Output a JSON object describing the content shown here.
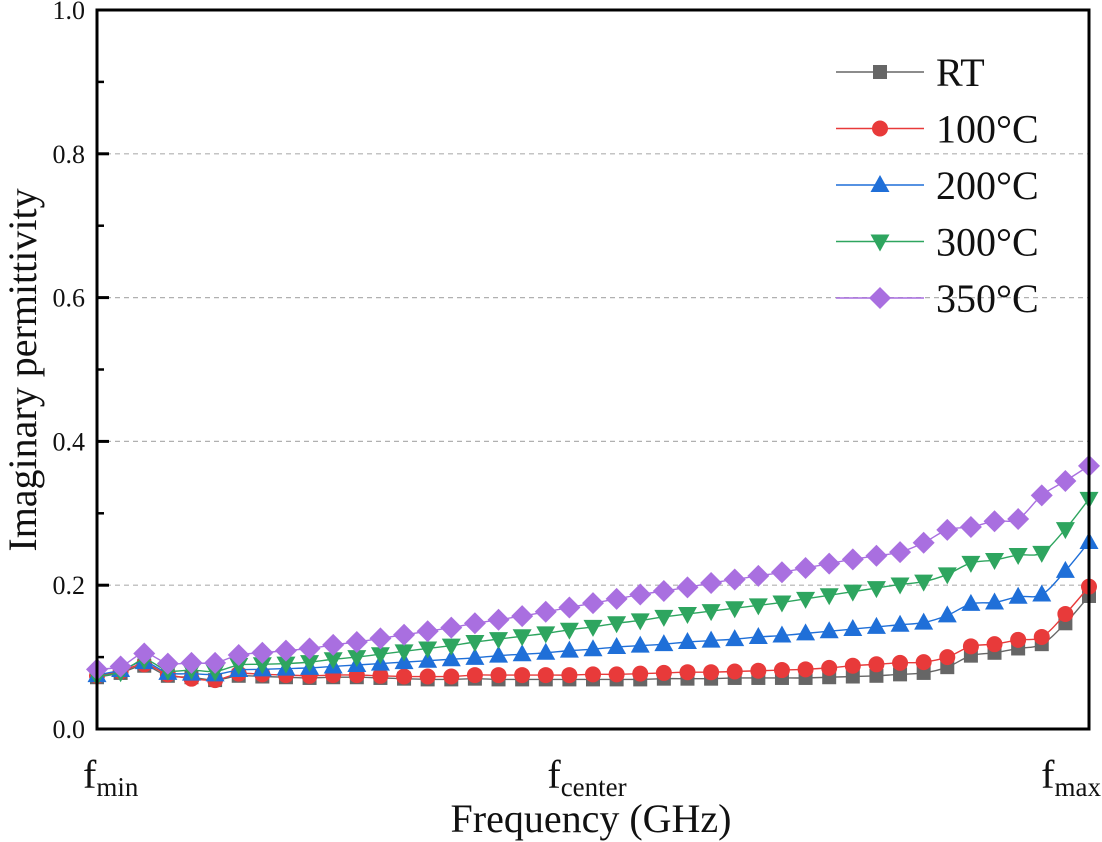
{
  "chart_data": {
    "type": "line",
    "title": "",
    "xlabel": "Frequency (GHz)",
    "ylabel": "Imaginary permittivity",
    "ylim": [
      0.0,
      1.0
    ],
    "yticks": [
      "0.0",
      "0.2",
      "0.4",
      "0.6",
      "0.8",
      "1.0"
    ],
    "ytick_values": [
      0.0,
      0.2,
      0.4,
      0.6,
      0.8,
      1.0
    ],
    "y_minor_step": 0.1,
    "grid": "horizontal dashed at major y ticks",
    "x_tick_labels": [
      {
        "main": "f",
        "sub": "min",
        "position": 0.0
      },
      {
        "main": "f",
        "sub": "center",
        "position": 0.5
      },
      {
        "main": "f",
        "sub": "max",
        "position": 1.0
      }
    ],
    "x_points": 43,
    "legend_placement": "top-right",
    "series": [
      {
        "name": "RT",
        "color": "#666666",
        "marker": "square",
        "values": [
          0.072,
          0.078,
          0.088,
          0.074,
          0.072,
          0.068,
          0.074,
          0.073,
          0.072,
          0.071,
          0.072,
          0.072,
          0.071,
          0.07,
          0.069,
          0.069,
          0.07,
          0.069,
          0.069,
          0.069,
          0.069,
          0.069,
          0.069,
          0.069,
          0.07,
          0.07,
          0.07,
          0.071,
          0.071,
          0.071,
          0.071,
          0.072,
          0.073,
          0.074,
          0.076,
          0.078,
          0.086,
          0.102,
          0.106,
          0.112,
          0.118,
          0.147,
          0.185
        ]
      },
      {
        "name": "100°C",
        "color": "#e83a3a",
        "marker": "circle",
        "values": [
          0.074,
          0.08,
          0.09,
          0.076,
          0.07,
          0.068,
          0.077,
          0.076,
          0.075,
          0.074,
          0.075,
          0.075,
          0.074,
          0.073,
          0.073,
          0.073,
          0.075,
          0.075,
          0.075,
          0.075,
          0.075,
          0.076,
          0.076,
          0.077,
          0.078,
          0.079,
          0.079,
          0.08,
          0.081,
          0.082,
          0.083,
          0.085,
          0.088,
          0.09,
          0.092,
          0.093,
          0.1,
          0.115,
          0.118,
          0.124,
          0.128,
          0.16,
          0.198
        ]
      },
      {
        "name": "200°C",
        "color": "#1f6fd8",
        "marker": "triangle-up",
        "values": [
          0.075,
          0.082,
          0.093,
          0.078,
          0.077,
          0.076,
          0.082,
          0.083,
          0.084,
          0.085,
          0.087,
          0.089,
          0.091,
          0.093,
          0.095,
          0.097,
          0.099,
          0.102,
          0.104,
          0.106,
          0.109,
          0.111,
          0.114,
          0.116,
          0.118,
          0.121,
          0.123,
          0.125,
          0.128,
          0.13,
          0.133,
          0.136,
          0.139,
          0.142,
          0.145,
          0.148,
          0.158,
          0.174,
          0.176,
          0.184,
          0.187,
          0.22,
          0.26
        ]
      },
      {
        "name": "300°C",
        "color": "#2ea55f",
        "marker": "triangle-down",
        "values": [
          0.073,
          0.079,
          0.096,
          0.081,
          0.082,
          0.08,
          0.089,
          0.09,
          0.091,
          0.093,
          0.097,
          0.1,
          0.104,
          0.108,
          0.112,
          0.116,
          0.121,
          0.125,
          0.129,
          0.133,
          0.138,
          0.142,
          0.147,
          0.151,
          0.156,
          0.16,
          0.164,
          0.168,
          0.172,
          0.176,
          0.181,
          0.186,
          0.191,
          0.196,
          0.201,
          0.205,
          0.215,
          0.231,
          0.235,
          0.242,
          0.245,
          0.278,
          0.32
        ]
      },
      {
        "name": "350°C",
        "color": "#a96fe0",
        "marker": "diamond",
        "values": [
          0.083,
          0.087,
          0.105,
          0.091,
          0.092,
          0.092,
          0.103,
          0.106,
          0.109,
          0.112,
          0.117,
          0.121,
          0.126,
          0.131,
          0.136,
          0.141,
          0.147,
          0.152,
          0.157,
          0.163,
          0.169,
          0.175,
          0.181,
          0.187,
          0.192,
          0.197,
          0.203,
          0.208,
          0.213,
          0.218,
          0.224,
          0.23,
          0.236,
          0.241,
          0.246,
          0.259,
          0.277,
          0.281,
          0.289,
          0.292,
          0.325,
          0.345,
          0.366
        ]
      }
    ]
  }
}
